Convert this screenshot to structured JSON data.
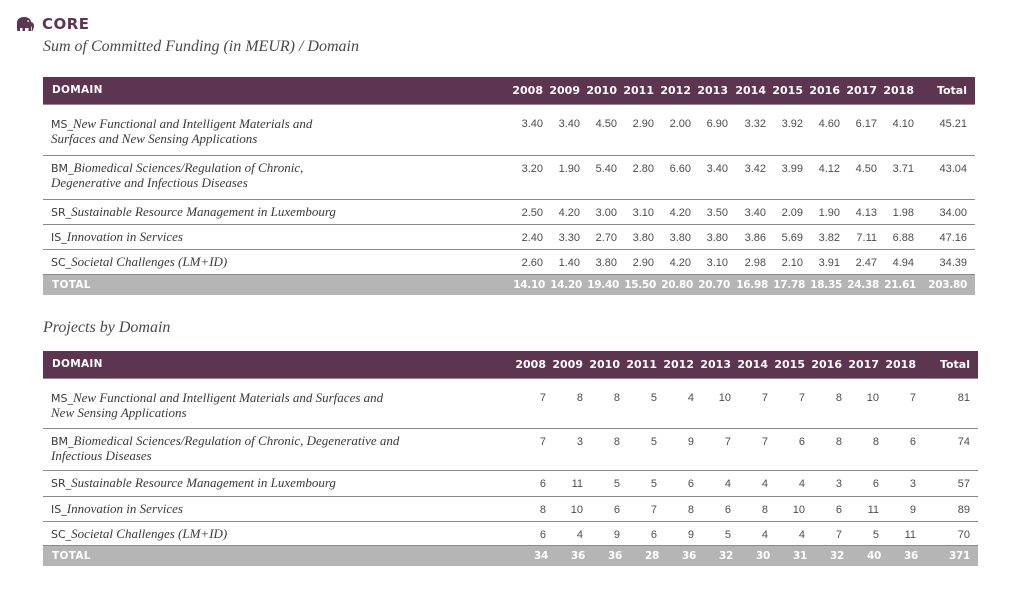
{
  "brand": {
    "name": "CORE",
    "icon": "elephant-icon",
    "color": "#5e3550"
  },
  "funding": {
    "caption": "Sum of Committed Funding (in MEUR) / Domain",
    "headers": [
      "DOMAIN",
      "2008",
      "2009",
      "2010",
      "2011",
      "2012",
      "2013",
      "2014",
      "2015",
      "2016",
      "2017",
      "2018",
      "Total"
    ],
    "rows": [
      {
        "code": "MS_",
        "name": "New Functional and Intelligent Materials and",
        "name2": "Surfaces and New Sensing Applications",
        "values": [
          "3.40",
          "3.40",
          "4.50",
          "2.90",
          "2.00",
          "6.90",
          "3.32",
          "3.92",
          "4.60",
          "6.17",
          "4.10",
          "45.21"
        ]
      },
      {
        "code": "BM_",
        "name": "Biomedical Sciences/Regulation of Chronic,",
        "name2": "Degenerative and Infectious Diseases",
        "values": [
          "3.20",
          "1.90",
          "5.40",
          "2.80",
          "6.60",
          "3.40",
          "3.42",
          "3.99",
          "4.12",
          "4.50",
          "3.71",
          "43.04"
        ]
      },
      {
        "code": "SR_",
        "name": "Sustainable Resource Management in Luxembourg",
        "name2": "",
        "values": [
          "2.50",
          "4.20",
          "3.00",
          "3.10",
          "4.20",
          "3.50",
          "3.40",
          "2.09",
          "1.90",
          "4.13",
          "1.98",
          "34.00"
        ]
      },
      {
        "code": "IS_",
        "name": "Innovation in Services",
        "name2": "",
        "values": [
          "2.40",
          "3.30",
          "2.70",
          "3.80",
          "3.80",
          "3.80",
          "3.86",
          "5.69",
          "3.82",
          "7.11",
          "6.88",
          "47.16"
        ]
      },
      {
        "code": "SC_",
        "name": "Societal Challenges (LM+ID)",
        "name2": "",
        "values": [
          "2.60",
          "1.40",
          "3.80",
          "2.90",
          "4.20",
          "3.10",
          "2.98",
          "2.10",
          "3.91",
          "2.47",
          "4.94",
          "34.39"
        ]
      }
    ],
    "total_label": "TOTAL",
    "totals": [
      "14.10",
      "14.20",
      "19.40",
      "15.50",
      "20.80",
      "20.70",
      "16.98",
      "17.78",
      "18.35",
      "24.38",
      "21.61",
      "203.80"
    ]
  },
  "projects": {
    "caption": "Projects by Domain",
    "headers": [
      "DOMAIN",
      "2008",
      "2009",
      "2010",
      "2011",
      "2012",
      "2013",
      "2014",
      "2015",
      "2016",
      "2017",
      "2018",
      "Total"
    ],
    "rows": [
      {
        "code": "MS_",
        "name": "New Functional and Intelligent Materials and Surfaces and",
        "name2": "New Sensing Applications",
        "values": [
          "7",
          "8",
          "8",
          "5",
          "4",
          "10",
          "7",
          "7",
          "8",
          "10",
          "7",
          "81"
        ]
      },
      {
        "code": "BM_",
        "name": "Biomedical Sciences/Regulation of Chronic, Degenerative and",
        "name2": "Infectious Diseases",
        "values": [
          "7",
          "3",
          "8",
          "5",
          "9",
          "7",
          "7",
          "6",
          "8",
          "8",
          "6",
          "74"
        ]
      },
      {
        "code": "SR_",
        "name": "Sustainable Resource Management in Luxembourg",
        "name2": "",
        "values": [
          "6",
          "11",
          "5",
          "5",
          "6",
          "4",
          "4",
          "4",
          "3",
          "6",
          "3",
          "57"
        ]
      },
      {
        "code": "IS_",
        "name": "Innovation in Services",
        "name2": "",
        "values": [
          "8",
          "10",
          "6",
          "7",
          "8",
          "6",
          "8",
          "10",
          "6",
          "11",
          "9",
          "89"
        ]
      },
      {
        "code": "SC_",
        "name": "Societal Challenges (LM+ID)",
        "name2": "",
        "values": [
          "6",
          "4",
          "9",
          "6",
          "9",
          "5",
          "4",
          "4",
          "7",
          "5",
          "11",
          "70"
        ]
      }
    ],
    "total_label": "TOTAL",
    "totals": [
      "34",
      "36",
      "36",
      "28",
      "36",
      "32",
      "30",
      "31",
      "32",
      "40",
      "36",
      "371"
    ]
  }
}
